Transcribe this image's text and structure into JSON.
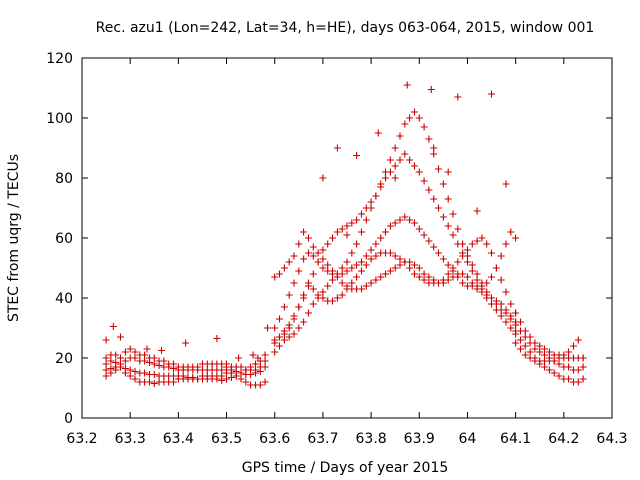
{
  "colors": {
    "points": "#cc0000",
    "axis": "#000000",
    "grid": "#000000"
  },
  "chart_data": {
    "type": "scatter",
    "title": "Rec. azu1 (Lon=242, Lat=34, h=HE), days 063-064, 2015, window 001",
    "xlabel": "GPS time / Days of year 2015",
    "ylabel": "STEC from uqrg / TECUs",
    "xlim": [
      63.2,
      64.3
    ],
    "ylim": [
      0,
      120
    ],
    "xticks": [
      "63.2",
      "63.3",
      "63.4",
      "63.5",
      "63.6",
      "63.7",
      "63.8",
      "63.9",
      "64",
      "64.1",
      "64.2",
      "64.3"
    ],
    "yticks": [
      "0",
      "20",
      "40",
      "60",
      "80",
      "100",
      "120"
    ],
    "grid": false,
    "marker": "plus",
    "series": [
      {
        "x": [
          63.25,
          63.26,
          63.27,
          63.28,
          63.29,
          63.3,
          63.31,
          63.32,
          63.33,
          63.34,
          63.35,
          63.36,
          63.37,
          63.38,
          63.39,
          63.4,
          63.41,
          63.42,
          63.43,
          63.44,
          63.45,
          63.46,
          63.47,
          63.48,
          63.49,
          63.5,
          63.51,
          63.52,
          63.53,
          63.54,
          63.55,
          63.56,
          63.57,
          63.58,
          63.25,
          63.26,
          63.27,
          63.28,
          63.29,
          63.3,
          63.31,
          63.32,
          63.33,
          63.34,
          63.35,
          63.36,
          63.37,
          63.38,
          63.39,
          63.4,
          63.41,
          63.42,
          63.43,
          63.44,
          63.45,
          63.46,
          63.47,
          63.48,
          63.49,
          63.5,
          63.51,
          63.52,
          63.53,
          63.54,
          63.55,
          63.56,
          63.57,
          63.58,
          63.25,
          63.26,
          63.27,
          63.28,
          63.29,
          63.3,
          63.31,
          63.32,
          63.33,
          63.34,
          63.35,
          63.36,
          63.37,
          63.38,
          63.39,
          63.4,
          63.41,
          63.42,
          63.43,
          63.44,
          63.45,
          63.46,
          63.47,
          63.48,
          63.49,
          63.5,
          63.51,
          63.52,
          63.53,
          63.54,
          63.55,
          63.56,
          63.57,
          63.58,
          63.25,
          63.26,
          63.27,
          63.28,
          63.29,
          63.3,
          63.31,
          63.32,
          63.33,
          63.34,
          63.35,
          63.36,
          63.37,
          63.38,
          63.39,
          63.4,
          63.41,
          63.42,
          63.43,
          63.44,
          63.45,
          63.46,
          63.47,
          63.48,
          63.49,
          63.5,
          63.51,
          63.52,
          63.53,
          63.54,
          63.55,
          63.56,
          63.57,
          63.58,
          63.25,
          63.265,
          63.28,
          63.335,
          63.365,
          63.415,
          63.48,
          63.5,
          63.525,
          63.555,
          63.565,
          63.585
        ],
        "y": [
          16,
          16.5,
          17,
          17,
          16.5,
          16,
          15.5,
          15,
          15,
          14.5,
          14.5,
          14,
          14,
          14,
          14,
          14,
          14,
          13.5,
          13.5,
          13,
          13,
          13,
          13,
          13,
          12.5,
          13,
          13.5,
          14,
          15,
          16,
          17,
          18,
          19,
          21,
          18,
          19,
          18.5,
          18,
          19,
          20,
          20,
          19,
          19,
          18.5,
          18,
          17.5,
          17,
          17,
          16.5,
          16,
          16,
          16,
          16,
          16,
          16,
          16,
          16,
          16,
          16,
          16,
          16,
          15.5,
          15,
          14.5,
          14.5,
          15,
          15.5,
          17,
          20,
          21,
          21,
          20,
          22,
          23,
          22,
          21,
          21,
          20,
          20,
          19,
          19,
          18,
          18,
          17,
          17,
          17,
          17,
          17,
          18,
          18,
          18,
          18,
          18,
          17,
          17,
          17,
          17,
          16,
          16,
          16,
          17,
          19,
          14,
          15,
          16,
          17,
          15,
          14,
          13,
          12,
          12,
          12,
          11.5,
          12,
          12,
          12,
          12,
          13,
          13,
          13,
          13,
          13,
          14,
          14,
          14,
          14,
          14,
          15,
          15,
          14,
          13,
          12,
          11,
          11,
          11,
          12,
          26,
          30.5,
          27,
          23,
          22.5,
          25,
          26.5,
          18,
          20,
          21,
          20,
          30
        ],
        "name": ""
      },
      {
        "x": [
          63.6,
          63.61,
          63.62,
          63.63,
          63.64,
          63.65,
          63.66,
          63.67,
          63.68,
          63.69,
          63.7,
          63.71,
          63.72,
          63.73,
          63.74,
          63.75,
          63.76,
          63.77,
          63.78,
          63.79,
          63.8,
          63.81,
          63.82,
          63.83,
          63.84,
          63.85,
          63.86,
          63.87,
          63.88,
          63.89,
          63.9,
          63.91,
          63.92,
          63.93,
          63.94,
          63.95,
          63.96,
          63.97,
          63.98,
          63.99,
          64,
          64.01,
          64.02,
          64.03,
          64.04,
          64.05,
          64.06,
          64.07,
          64.08,
          64.09,
          64.1,
          63.6,
          63.61,
          63.62,
          63.63,
          63.64,
          63.65,
          63.66,
          63.67,
          63.68,
          63.69,
          63.7,
          63.71,
          63.72,
          63.73,
          63.74,
          63.75,
          63.76,
          63.77,
          63.78,
          63.79,
          63.8,
          63.81,
          63.82,
          63.83,
          63.84,
          63.85,
          63.86,
          63.87,
          63.88,
          63.89,
          63.9,
          63.91,
          63.92,
          63.93,
          63.94,
          63.95,
          63.96,
          63.97,
          63.98,
          63.99,
          64,
          64.01,
          64.02,
          64.03,
          64.04,
          64.05,
          64.06,
          64.07,
          64.08,
          64.09,
          64.1,
          63.6,
          63.61,
          63.62,
          63.63,
          63.64,
          63.65,
          63.66,
          63.67,
          63.68,
          63.69,
          63.7,
          63.71,
          63.72,
          63.73,
          63.74,
          63.75,
          63.76,
          63.77,
          63.78,
          63.79,
          63.8,
          63.81,
          63.82,
          63.83,
          63.84,
          63.85,
          63.86,
          63.87,
          63.88,
          63.89,
          63.9,
          63.91,
          63.92,
          63.93,
          63.94,
          63.95,
          63.96,
          63.97,
          63.98,
          63.99,
          64,
          64.01,
          64.02,
          64.03,
          64.04,
          64.05,
          64.06,
          64.07,
          64.08,
          64.09,
          64.1,
          63.6,
          63.61,
          63.62,
          63.63,
          63.64,
          63.65,
          63.66,
          63.67,
          63.68,
          63.69,
          63.7,
          63.71,
          63.72,
          63.73,
          63.74,
          63.75,
          63.76,
          63.77,
          63.78,
          63.79,
          63.8,
          63.81,
          63.82,
          63.83,
          63.84,
          63.85,
          63.86,
          63.87,
          63.88,
          63.89,
          63.9,
          63.91,
          63.92,
          63.93,
          63.94,
          63.95,
          63.96,
          63.97,
          63.98,
          63.99,
          64,
          64.01,
          64.02,
          64.03,
          64.04,
          64.05,
          64.06,
          64.07,
          64.08,
          64.09,
          64.1,
          63.6,
          63.61,
          63.62,
          63.63,
          63.64,
          63.65,
          63.66,
          63.67,
          63.68,
          63.69,
          63.7,
          63.71,
          63.72,
          63.73,
          63.74,
          63.75,
          63.76,
          63.77,
          63.78,
          63.79,
          63.8,
          63.81,
          63.82,
          63.83,
          63.84,
          63.85,
          63.86,
          63.87,
          63.88,
          63.89,
          63.9,
          63.91,
          63.92,
          63.93,
          63.94,
          63.95,
          63.96,
          63.97,
          63.98,
          63.99,
          64,
          64.01,
          64.02,
          64.03,
          64.04,
          64.05,
          64.06,
          64.07,
          64.08,
          64.09,
          64.1,
          63.875,
          63.925,
          63.98,
          64.05,
          63.73,
          63.77,
          63.815,
          63.85,
          63.93,
          63.96,
          64.02,
          64.08,
          63.7,
          63.75
        ],
        "y": [
          22,
          24,
          26,
          27,
          28,
          30,
          32,
          35,
          38,
          40,
          42,
          44,
          46,
          48,
          50,
          52,
          55,
          58,
          62,
          66,
          70,
          74,
          78,
          82,
          86,
          90,
          94,
          98,
          100,
          102,
          100,
          97,
          93,
          88,
          83,
          78,
          73,
          68,
          63,
          58,
          54,
          51,
          48,
          45,
          42,
          40,
          38,
          36,
          35,
          33,
          32,
          25,
          27,
          29,
          31,
          34,
          37,
          40,
          44,
          48,
          52,
          56,
          58,
          60,
          62,
          63,
          64,
          65,
          66,
          68,
          70,
          72,
          74,
          77,
          80,
          82,
          84,
          86,
          88,
          86,
          84,
          82,
          79,
          76,
          73,
          70,
          67,
          64,
          61,
          58,
          55,
          52,
          49,
          46,
          43,
          40,
          38,
          36,
          34,
          32,
          30,
          29,
          30,
          33,
          37,
          41,
          45,
          49,
          53,
          55,
          54,
          52,
          50,
          49,
          48,
          48,
          48,
          49,
          50,
          51,
          52,
          54,
          56,
          58,
          60,
          62,
          64,
          65,
          66,
          67,
          66,
          65,
          63,
          61,
          59,
          57,
          55,
          53,
          51,
          49,
          47,
          45,
          44,
          44,
          43,
          42,
          41,
          40,
          39,
          38,
          36,
          34,
          32,
          47,
          48,
          50,
          52,
          54,
          58,
          62,
          60,
          57,
          55,
          53,
          51,
          49,
          47,
          45,
          44,
          43,
          43,
          43,
          44,
          45,
          46,
          47,
          48,
          49,
          50,
          51,
          52,
          52,
          51,
          50,
          48,
          47,
          46,
          45,
          45,
          46,
          47,
          48,
          48,
          47,
          45,
          44,
          44,
          45,
          47,
          50,
          54,
          58,
          62,
          60,
          26,
          27,
          28,
          30,
          33,
          37,
          41,
          45,
          43,
          41,
          40,
          39,
          39,
          40,
          41,
          43,
          45,
          47,
          49,
          51,
          53,
          54,
          55,
          55,
          55,
          54,
          53,
          52,
          50,
          48,
          47,
          46,
          45,
          45,
          45,
          46,
          48,
          50,
          52,
          54,
          56,
          58,
          59,
          60,
          58,
          55,
          50,
          46,
          42,
          38,
          35,
          111,
          109.5,
          107,
          108,
          90,
          87.5,
          95,
          80,
          90,
          82,
          69,
          78,
          80,
          61
        ],
        "name": ""
      },
      {
        "x": [
          64.1,
          64.11,
          64.12,
          64.13,
          64.14,
          64.15,
          64.16,
          64.17,
          64.18,
          64.19,
          64.2,
          64.21,
          64.22,
          64.23,
          64.24,
          64.1,
          64.11,
          64.12,
          64.13,
          64.14,
          64.15,
          64.16,
          64.17,
          64.18,
          64.19,
          64.2,
          64.21,
          64.22,
          64.23,
          64.24,
          64.1,
          64.11,
          64.12,
          64.13,
          64.14,
          64.15,
          64.16,
          64.17,
          64.18,
          64.19,
          64.2,
          64.21,
          64.22,
          64.23,
          64.24,
          64.1,
          64.11,
          64.12,
          64.13,
          64.14,
          64.15,
          64.16,
          64.17,
          64.18,
          64.19,
          64.2,
          64.21,
          64.22,
          64.23,
          64.24
        ],
        "y": [
          28,
          26,
          24,
          22,
          20,
          18,
          17,
          16,
          15,
          14,
          13,
          13,
          12,
          12,
          13,
          31,
          29,
          27,
          25,
          23,
          22,
          21,
          20,
          19,
          18,
          17,
          17,
          16,
          16,
          17,
          35,
          32,
          29,
          27,
          25,
          24,
          23,
          22,
          21,
          21,
          20,
          20,
          20,
          20,
          20,
          25,
          23,
          21,
          20,
          19,
          19,
          19,
          19,
          19,
          20,
          21,
          22,
          24,
          26,
          20
        ],
        "name": ""
      }
    ]
  }
}
